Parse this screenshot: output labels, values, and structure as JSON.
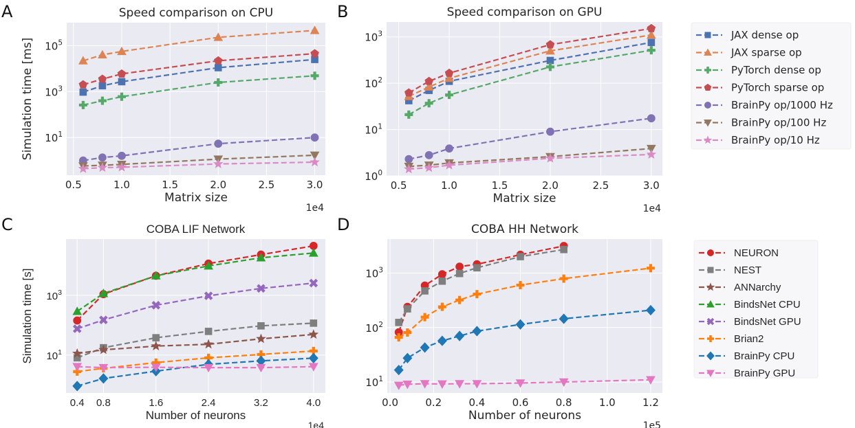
{
  "colors": {
    "background": "#eaeaf2",
    "grid": "#ffffff",
    "text": "#262626"
  },
  "chart_data": [
    {
      "panel_letter": "A",
      "type": "line",
      "title": "Speed comparison on CPU",
      "xlabel": "Matrix size",
      "ylabel": "Simulation time [ms]",
      "x_offset_text": "1e4",
      "xscale": "linear",
      "yscale": "log",
      "xlim": [
        4300,
        31100
      ],
      "ylim": [
        0.23,
        1000000
      ],
      "grid": true,
      "xticks": [
        5000,
        10000,
        15000,
        20000,
        25000,
        30000
      ],
      "xtick_labels": [
        "0.5",
        "1.0",
        "1.5",
        "2.0",
        "2.5",
        "3.0"
      ],
      "yticks": [
        10,
        1000,
        100000
      ],
      "ytick_labels": [
        "10^1",
        "10^3",
        "10^5"
      ],
      "x": [
        6000,
        8000,
        10000,
        20000,
        30000
      ],
      "legend": "right",
      "series": [
        {
          "name": "JAX dense op",
          "color": "#4c72b0",
          "marker": "square",
          "values": [
            950,
            1800,
            2700,
            11000,
            25000
          ]
        },
        {
          "name": "JAX sparse op",
          "color": "#dd8452",
          "marker": "triangle-up",
          "values": [
            22000,
            40000,
            56000,
            230000,
            460000
          ]
        },
        {
          "name": "PyTorch dense op",
          "color": "#55a868",
          "marker": "plus",
          "values": [
            260,
            400,
            600,
            2500,
            4900
          ]
        },
        {
          "name": "PyTorch sparse op",
          "color": "#c44e52",
          "marker": "pentagon",
          "values": [
            2000,
            3500,
            5900,
            22000,
            45000
          ]
        },
        {
          "name": "BrainPy op/1000 Hz",
          "color": "#8172b3",
          "marker": "circle",
          "values": [
            1.0,
            1.35,
            1.6,
            5.4,
            10
          ]
        },
        {
          "name": "BrainPy op/100 Hz",
          "color": "#937860",
          "marker": "triangle-down",
          "values": [
            0.58,
            0.62,
            0.68,
            1.15,
            1.7
          ]
        },
        {
          "name": "BrainPy op/10 Hz",
          "color": "#da8bc3",
          "marker": "star",
          "values": [
            0.44,
            0.49,
            0.51,
            0.71,
            0.85
          ]
        }
      ]
    },
    {
      "panel_letter": "B",
      "type": "line",
      "title": "Speed comparison on GPU",
      "xlabel": "Matrix size",
      "ylabel": "",
      "x_offset_text": "1e4",
      "xscale": "linear",
      "yscale": "log",
      "xlim": [
        3800,
        31100
      ],
      "ylim": [
        1,
        2100
      ],
      "grid": true,
      "xticks": [
        5000,
        10000,
        15000,
        20000,
        25000,
        30000
      ],
      "xtick_labels": [
        "0.5",
        "1.0",
        "1.5",
        "2.0",
        "2.5",
        "3.0"
      ],
      "yticks": [
        1,
        10,
        100,
        1000
      ],
      "ytick_labels": [
        "10^0",
        "10^1",
        "10^2",
        "10^3"
      ],
      "x": [
        6000,
        8000,
        10000,
        20000,
        30000
      ],
      "legend": "shared with A",
      "series": [
        {
          "name": "JAX dense op",
          "color": "#4c72b0",
          "marker": "square",
          "values": [
            42,
            70,
            110,
            310,
            760
          ]
        },
        {
          "name": "JAX sparse op",
          "color": "#dd8452",
          "marker": "triangle-up",
          "values": [
            52,
            83,
            128,
            500,
            1100
          ]
        },
        {
          "name": "PyTorch dense op",
          "color": "#55a868",
          "marker": "plus",
          "values": [
            21,
            37,
            56,
            225,
            515
          ]
        },
        {
          "name": "PyTorch sparse op",
          "color": "#c44e52",
          "marker": "pentagon",
          "values": [
            62,
            110,
            165,
            680,
            1520
          ]
        },
        {
          "name": "BrainPy op/1000 Hz",
          "color": "#8172b3",
          "marker": "circle",
          "values": [
            2.3,
            2.8,
            3.9,
            9.0,
            17.5
          ]
        },
        {
          "name": "BrainPy op/100 Hz",
          "color": "#937860",
          "marker": "triangle-down",
          "values": [
            1.6,
            1.7,
            1.9,
            2.6,
            3.9
          ]
        },
        {
          "name": "BrainPy op/10 Hz",
          "color": "#da8bc3",
          "marker": "star",
          "values": [
            1.4,
            1.5,
            1.7,
            2.4,
            2.9
          ]
        }
      ]
    },
    {
      "panel_letter": "C",
      "type": "line",
      "title": "COBA LIF Network",
      "xlabel": "Number of neurons",
      "ylabel": "Simulation time [s]",
      "x_offset_text": "1e4",
      "xscale": "linear",
      "yscale": "log",
      "xlim": [
        2300,
        41800
      ],
      "ylim": [
        0.54,
        76000
      ],
      "grid": true,
      "xticks": [
        4000,
        8000,
        16000,
        24000,
        32000,
        40000
      ],
      "xtick_labels": [
        "0.4",
        "0.8",
        "1.6",
        "2.4",
        "3.2",
        "4.0"
      ],
      "yticks": [
        10,
        1000
      ],
      "ytick_labels": [
        "10^1",
        "10^3"
      ],
      "x": [
        4000,
        8000,
        16000,
        24000,
        32000,
        40000
      ],
      "legend": "right",
      "series": [
        {
          "name": "NEURON",
          "color": "#d62728",
          "marker": "circle",
          "values": [
            143,
            1090,
            4500,
            11500,
            23000,
            45000
          ]
        },
        {
          "name": "NEST",
          "color": "#7f7f7f",
          "marker": "square",
          "values": [
            8.1,
            17.6,
            38,
            62,
            95,
            117
          ]
        },
        {
          "name": "ANNarchy",
          "color": "#8c564b",
          "marker": "star",
          "values": [
            11.3,
            15,
            20,
            23,
            35,
            49
          ]
        },
        {
          "name": "BindsNet CPU",
          "color": "#2ca02c",
          "marker": "triangle-up",
          "values": [
            290,
            1150,
            4500,
            9600,
            18000,
            26000
          ]
        },
        {
          "name": "BindsNet GPU",
          "color": "#9467bd",
          "marker": "x",
          "values": [
            76,
            150,
            465,
            960,
            1700,
            2560
          ]
        },
        {
          "name": "Brian2",
          "color": "#ff7f0e",
          "marker": "plus",
          "values": [
            2.8,
            3.6,
            5.6,
            8.1,
            10.5,
            13.7
          ]
        },
        {
          "name": "BrainPy CPU",
          "color": "#1f77b4",
          "marker": "diamond",
          "values": [
            0.92,
            1.65,
            2.9,
            4.9,
            6.4,
            7.9
          ]
        },
        {
          "name": "BrainPy GPU",
          "color": "#e377c2",
          "marker": "triangle-down",
          "values": [
            4.1,
            3.8,
            3.9,
            3.8,
            3.8,
            4.1
          ]
        }
      ]
    },
    {
      "panel_letter": "D",
      "type": "line",
      "title": "COBA HH Network",
      "xlabel": "Number of neurons",
      "ylabel": "",
      "x_offset_text": "1e5",
      "xscale": "linear",
      "yscale": "log",
      "xlim": [
        -1300,
        125400
      ],
      "ylim": [
        6.3,
        4200
      ],
      "grid": true,
      "xticks": [
        0,
        20000,
        40000,
        60000,
        80000,
        100000,
        120000
      ],
      "xtick_labels": [
        "0.0",
        "0.2",
        "0.4",
        "0.6",
        "0.8",
        "1.0",
        "1.2"
      ],
      "yticks": [
        10,
        100,
        1000
      ],
      "ytick_labels": [
        "10^1",
        "10^2",
        "10^3"
      ],
      "x": [
        4000,
        8000,
        16000,
        24000,
        32000,
        40000,
        60000,
        80000,
        120000
      ],
      "legend": "shared with C",
      "series": [
        {
          "name": "NEURON",
          "color": "#d62728",
          "marker": "circle",
          "values": [
            82,
            240,
            590,
            950,
            1310,
            1450,
            2170,
            3140,
            null
          ]
        },
        {
          "name": "NEST",
          "color": "#7f7f7f",
          "marker": "square",
          "values": [
            124,
            220,
            470,
            710,
            980,
            1250,
            2000,
            2700,
            null
          ]
        },
        {
          "name": "Brian2",
          "color": "#ff7f0e",
          "marker": "plus",
          "values": [
            66,
            81,
            155,
            240,
            320,
            410,
            600,
            790,
            1230
          ]
        },
        {
          "name": "BrainPy CPU",
          "color": "#1f77b4",
          "marker": "diamond",
          "values": [
            16.6,
            27.5,
            43,
            57,
            70,
            86,
            114,
            145,
            208
          ]
        },
        {
          "name": "BrainPy GPU",
          "color": "#e377c2",
          "marker": "triangle-down",
          "values": [
            8.7,
            9.1,
            9.3,
            9.2,
            9.3,
            9.3,
            9.6,
            10,
            11
          ]
        }
      ]
    }
  ]
}
